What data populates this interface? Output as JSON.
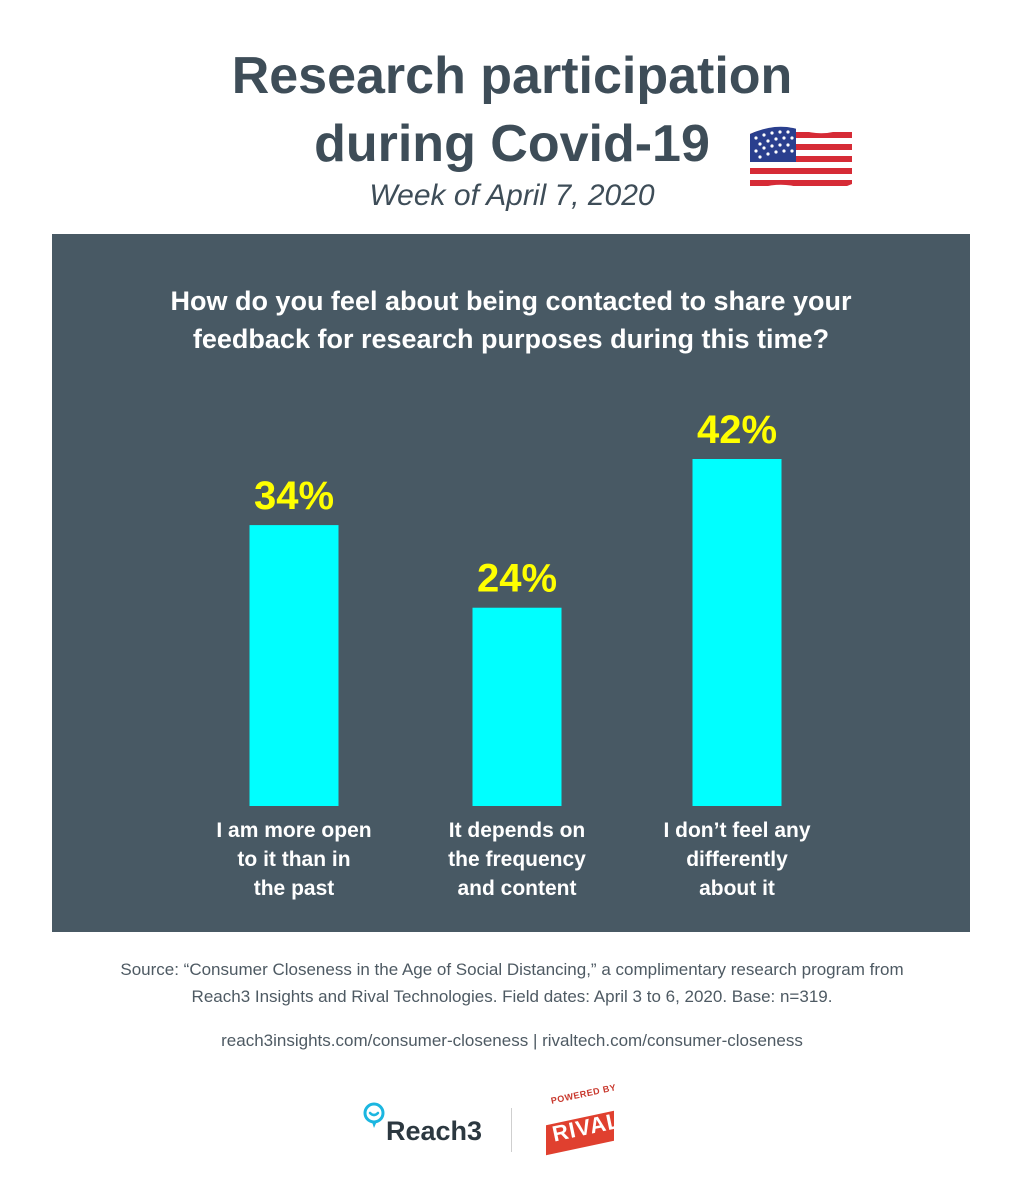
{
  "title": {
    "line1": "Research participation",
    "line2": "during Covid-19"
  },
  "subtitle": "Week of April 7, 2020",
  "flag_icon": "us-flag-icon",
  "question": {
    "line1": "How do you feel about being contacted to share your",
    "line2": "feedback for research purposes during this time?"
  },
  "chart_data": {
    "type": "bar",
    "categories": [
      [
        "I am more open",
        "to it than in",
        "the past"
      ],
      [
        "It depends on",
        "the frequency",
        "and content"
      ],
      [
        "I don’t feel any",
        "differently",
        "about it"
      ]
    ],
    "values": [
      34,
      24,
      42
    ],
    "value_labels": [
      "34%",
      "24%",
      "42%"
    ],
    "value_unit": "%",
    "ylim": [
      0,
      42
    ],
    "grid": false,
    "bar_color": "#00ffff",
    "label_color": "#ffff00"
  },
  "colors": {
    "title": "#3e4d58",
    "panel": "#485964",
    "bar": "#00ffff",
    "value_label": "#ffff00"
  },
  "source": {
    "line1": "Source: “Consumer Closeness in the Age of Social Distancing,” a complimentary research program from",
    "line2": "Reach3 Insights and Rival Technologies. Field dates: April 3 to 6, 2020. Base: n=319."
  },
  "links": "reach3insights.com/consumer-closeness | rivaltech.com/consumer-closeness",
  "logos": {
    "reach3": "Reach3",
    "rival_powered": "POWERED BY",
    "rival": "RIVAL"
  }
}
